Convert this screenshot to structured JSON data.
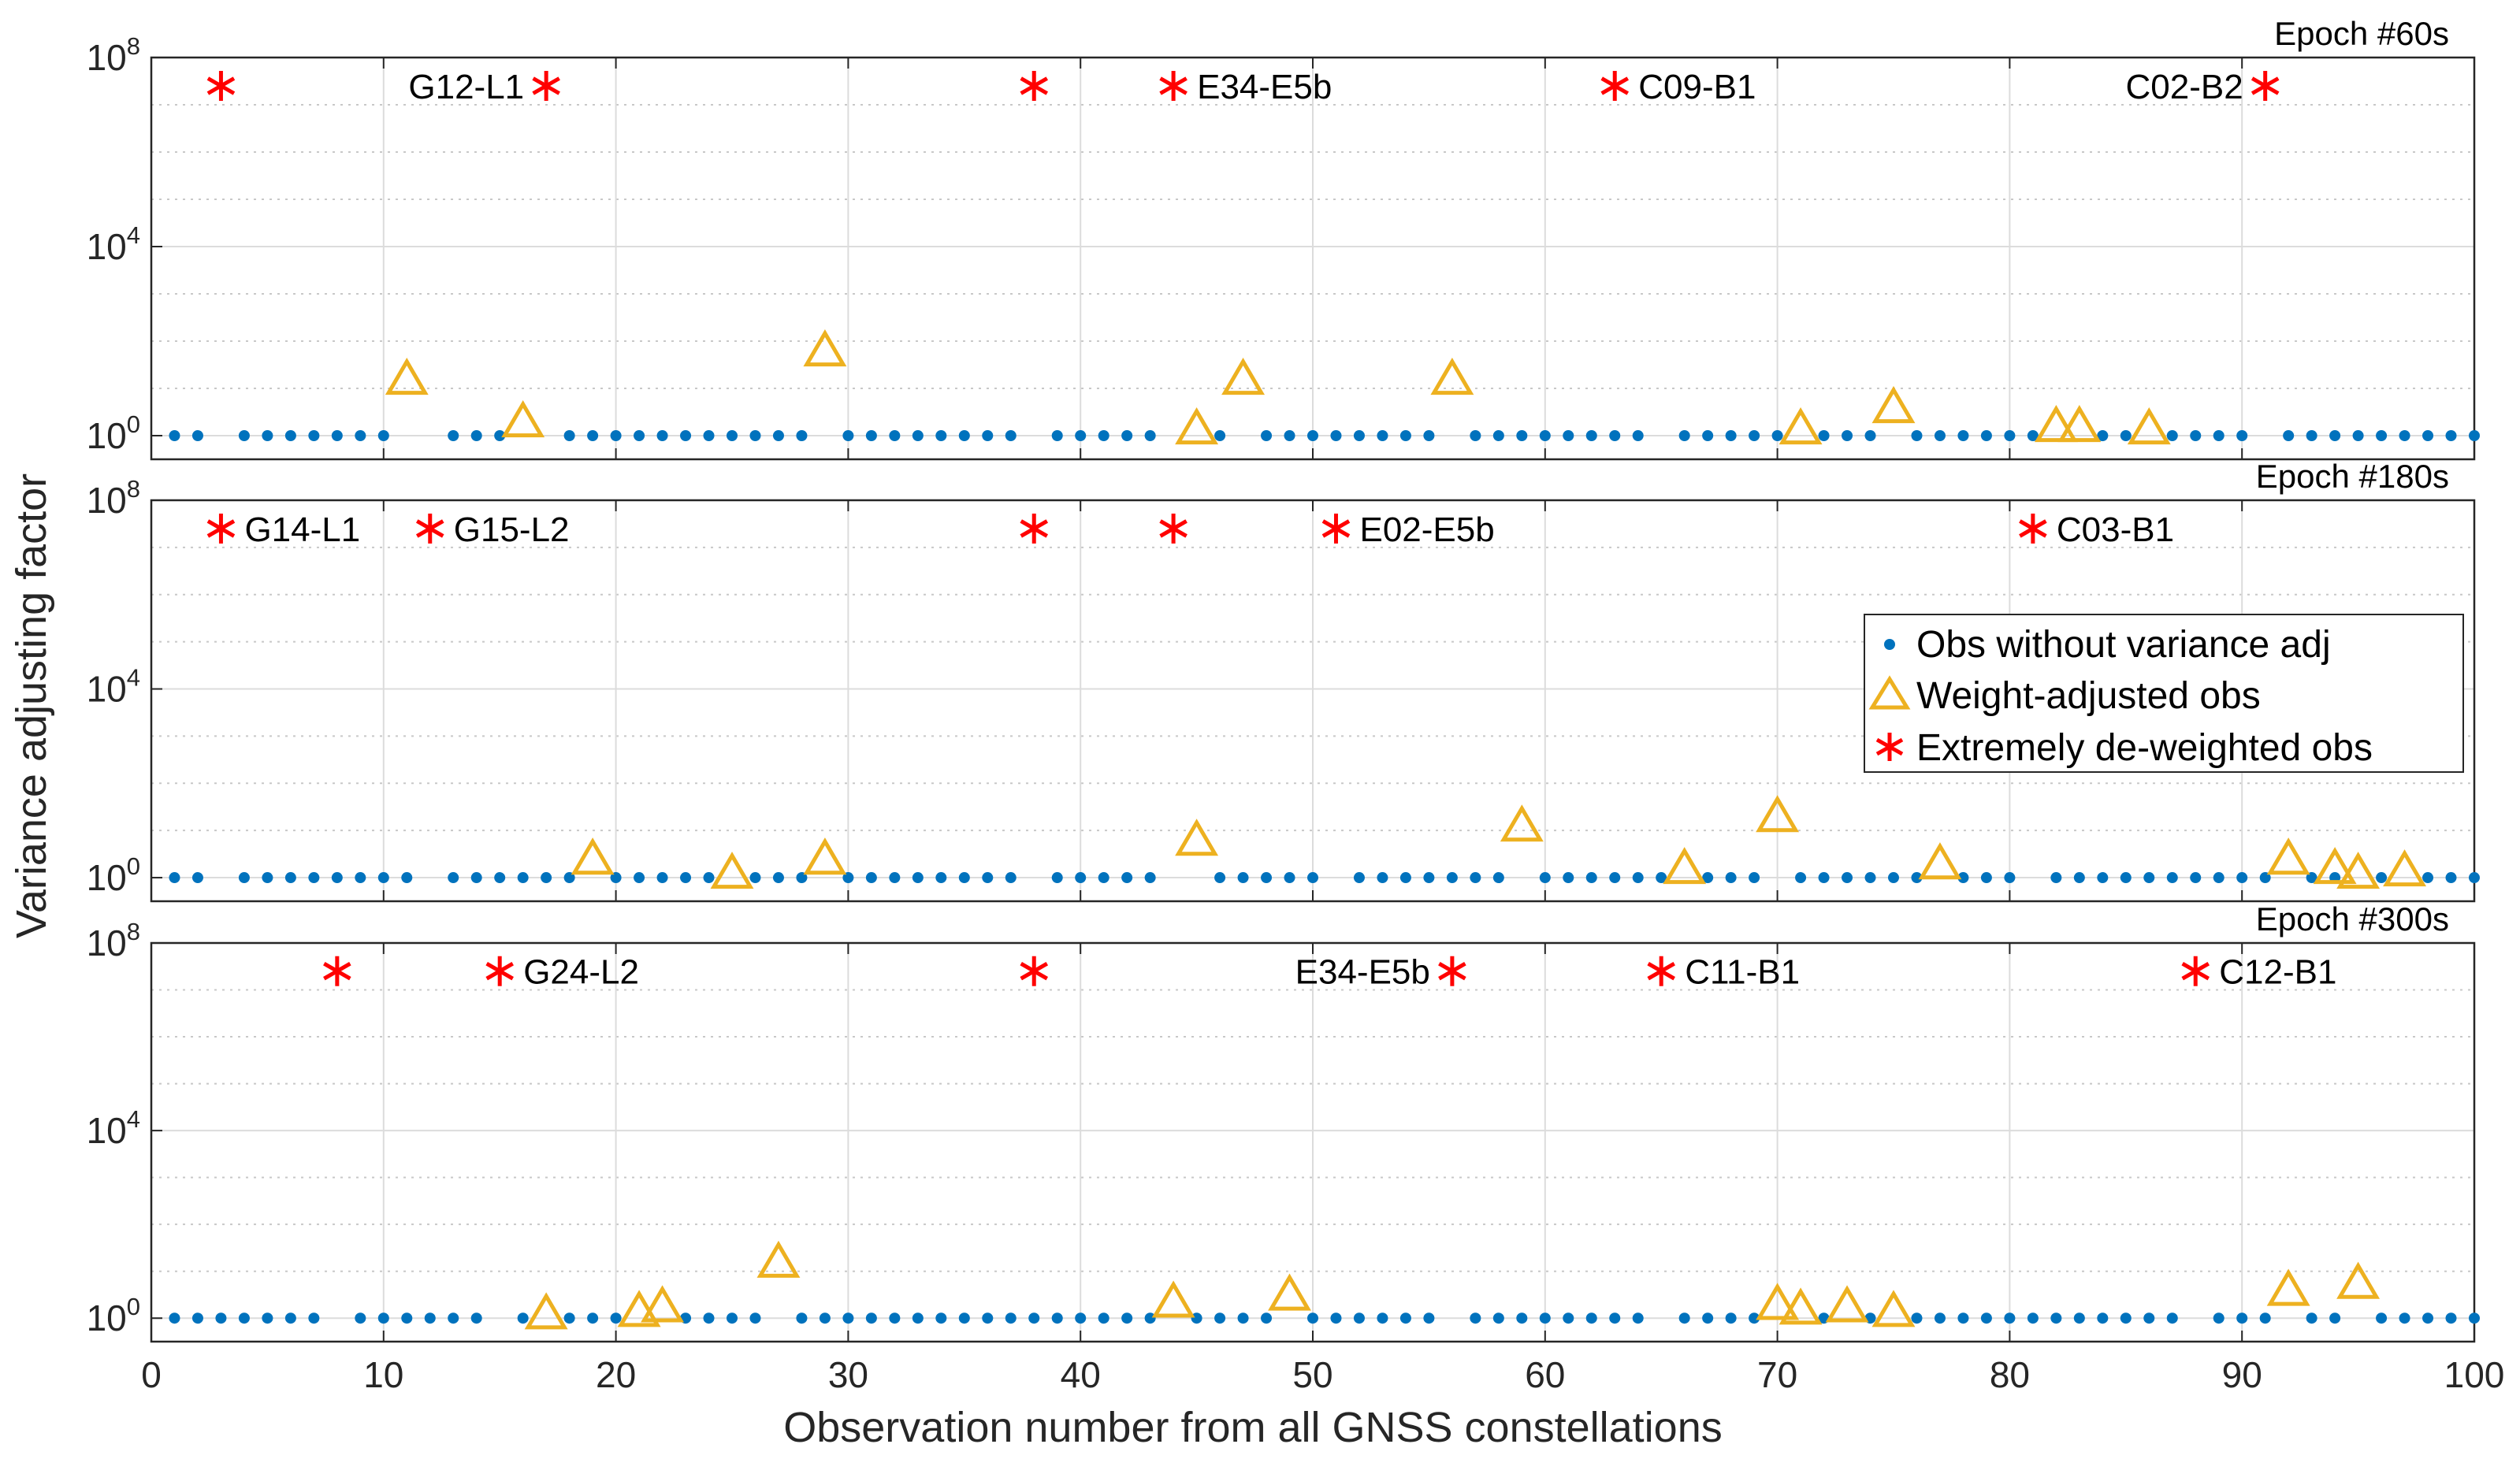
{
  "chart_data": {
    "type": "scatter",
    "xlabel": "Observation number from all GNSS constellations",
    "ylabel": "Variance adjusting factor",
    "xlim": [
      0,
      100
    ],
    "xticks": [
      "0",
      "10",
      "20",
      "30",
      "40",
      "50",
      "60",
      "70",
      "80",
      "90",
      "100"
    ],
    "yscale": "log",
    "ylim_log10": [
      -0.5,
      8
    ],
    "yticks": [
      {
        "base": "10",
        "exp": "0"
      },
      {
        "base": "10",
        "exp": "4"
      },
      {
        "base": "10",
        "exp": "8"
      }
    ],
    "grid": true,
    "legend": {
      "placement": "right, inside middle panel",
      "entries": [
        "Obs without variance adj",
        "Weight-adjusted obs",
        "Extremely de-weighted obs"
      ]
    },
    "panels": [
      {
        "title": "Epoch #60s",
        "no_adj_x": [
          1,
          2,
          4,
          5,
          6,
          7,
          8,
          9,
          10,
          13,
          14,
          15,
          18,
          19,
          20,
          21,
          22,
          23,
          24,
          25,
          26,
          27,
          28,
          30,
          31,
          32,
          33,
          34,
          35,
          36,
          37,
          39,
          40,
          41,
          42,
          43,
          46,
          48,
          49,
          50,
          51,
          52,
          53,
          54,
          55,
          57,
          58,
          59,
          60,
          61,
          62,
          63,
          64,
          66,
          67,
          68,
          69,
          70,
          72,
          73,
          74,
          76,
          77,
          78,
          79,
          80,
          81,
          84,
          85,
          87,
          88,
          89,
          90,
          92,
          93,
          94,
          95,
          96,
          97,
          98,
          99,
          100
        ],
        "weighted": [
          [
            11,
            1.2
          ],
          [
            16,
            0.3
          ],
          [
            29,
            1.8
          ],
          [
            45,
            0.15
          ],
          [
            47,
            1.2
          ],
          [
            56,
            1.2
          ],
          [
            71,
            0.15
          ],
          [
            75,
            0.6
          ],
          [
            82,
            0.2
          ],
          [
            83,
            0.2
          ],
          [
            86,
            0.15
          ]
        ],
        "extreme": [
          [
            3,
            7.4
          ],
          [
            17,
            7.4
          ],
          [
            38,
            7.4
          ],
          [
            44,
            7.4
          ],
          [
            63,
            7.4
          ],
          [
            91,
            7.4
          ]
        ],
        "labels": [
          {
            "x": 17,
            "text": "G12-L1",
            "side": "left"
          },
          {
            "x": 44,
            "text": "E34-E5b",
            "side": "right"
          },
          {
            "x": 63,
            "text": "C09-B1",
            "side": "right"
          },
          {
            "x": 91,
            "text": "C02-B2",
            "side": "left"
          }
        ]
      },
      {
        "title": "Epoch #180s",
        "no_adj_x": [
          1,
          2,
          4,
          5,
          6,
          7,
          8,
          9,
          10,
          11,
          13,
          14,
          15,
          16,
          17,
          18,
          20,
          21,
          22,
          23,
          24,
          26,
          27,
          28,
          30,
          31,
          32,
          33,
          34,
          35,
          36,
          37,
          39,
          40,
          41,
          42,
          43,
          46,
          47,
          48,
          49,
          50,
          52,
          53,
          54,
          55,
          56,
          57,
          58,
          60,
          61,
          62,
          63,
          64,
          65,
          67,
          68,
          69,
          71,
          72,
          73,
          74,
          75,
          76,
          78,
          79,
          80,
          82,
          83,
          84,
          85,
          86,
          87,
          88,
          89,
          90,
          91,
          93,
          94,
          96,
          98,
          99,
          100
        ],
        "weighted": [
          [
            19,
            0.4
          ],
          [
            25,
            0.1
          ],
          [
            29,
            0.4
          ],
          [
            45,
            0.8
          ],
          [
            59,
            1.1
          ],
          [
            66,
            0.2
          ],
          [
            70,
            1.3
          ],
          [
            77,
            0.3
          ],
          [
            92,
            0.4
          ],
          [
            94,
            0.2
          ],
          [
            95,
            0.1
          ],
          [
            97,
            0.15
          ]
        ],
        "extreme": [
          [
            3,
            7.4
          ],
          [
            12,
            7.4
          ],
          [
            38,
            7.4
          ],
          [
            44,
            7.4
          ],
          [
            51,
            7.4
          ],
          [
            81,
            7.4
          ]
        ],
        "labels": [
          {
            "x": 3,
            "text": "G14-L1",
            "side": "right"
          },
          {
            "x": 12,
            "text": "G15-L2",
            "side": "right"
          },
          {
            "x": 51,
            "text": "E02-E5b",
            "side": "right"
          },
          {
            "x": 81,
            "text": "C03-B1",
            "side": "right"
          }
        ]
      },
      {
        "title": "Epoch #300s",
        "no_adj_x": [
          1,
          2,
          3,
          4,
          5,
          6,
          7,
          9,
          10,
          11,
          12,
          13,
          14,
          16,
          18,
          19,
          20,
          23,
          24,
          25,
          26,
          28,
          29,
          30,
          31,
          32,
          33,
          34,
          35,
          36,
          37,
          38,
          39,
          40,
          41,
          42,
          43,
          45,
          46,
          47,
          48,
          50,
          51,
          52,
          53,
          54,
          55,
          57,
          58,
          59,
          60,
          61,
          62,
          63,
          64,
          66,
          67,
          68,
          69,
          72,
          74,
          76,
          77,
          78,
          79,
          80,
          81,
          82,
          83,
          84,
          85,
          86,
          87,
          89,
          90,
          91,
          93,
          94,
          96,
          97,
          98,
          99,
          100
        ],
        "weighted": [
          [
            17,
            0.1
          ],
          [
            21,
            0.15
          ],
          [
            22,
            0.25
          ],
          [
            27,
            1.2
          ],
          [
            44,
            0.35
          ],
          [
            49,
            0.5
          ],
          [
            70,
            0.3
          ],
          [
            71,
            0.2
          ],
          [
            73,
            0.25
          ],
          [
            75,
            0.15
          ],
          [
            92,
            0.6
          ],
          [
            95,
            0.75
          ]
        ],
        "extreme": [
          [
            8,
            7.4
          ],
          [
            15,
            7.4
          ],
          [
            38,
            7.4
          ],
          [
            56,
            7.4
          ],
          [
            65,
            7.4
          ],
          [
            88,
            7.4
          ]
        ],
        "labels": [
          {
            "x": 15,
            "text": "G24-L2",
            "side": "right"
          },
          {
            "x": 56,
            "text": "E34-E5b",
            "side": "left"
          },
          {
            "x": 65,
            "text": "C11-B1",
            "side": "right"
          },
          {
            "x": 88,
            "text": "C12-B1",
            "side": "right"
          }
        ]
      }
    ]
  },
  "colors": {
    "no_adj": "#0072bd",
    "weighted": "#edb120",
    "extreme": "#ff0000",
    "axis": "#262626",
    "grid_major": "#dcdcdc",
    "grid_minor": "#c8c8c8"
  }
}
